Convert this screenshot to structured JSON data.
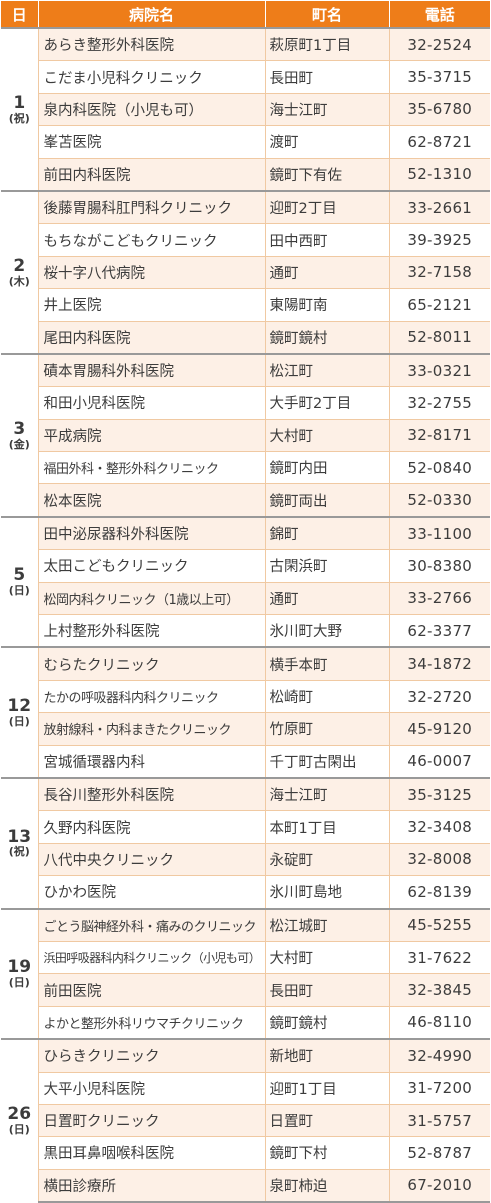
{
  "header": {
    "day": "日",
    "name": "病院名",
    "town": "町名",
    "tel": "電話"
  },
  "groups": [
    {
      "day": "1",
      "dow": "(祝)",
      "rows": [
        {
          "name": "あらき整形外科医院",
          "town": "萩原町1丁目",
          "tel": "32-2524"
        },
        {
          "name": "こだま小児科クリニック",
          "town": "長田町",
          "tel": "35-3715"
        },
        {
          "name": "泉内科医院（小児も可）",
          "town": "海士江町",
          "tel": "35-6780"
        },
        {
          "name": "峯苫医院",
          "town": "渡町",
          "tel": "62-8721"
        },
        {
          "name": "前田内科医院",
          "town": "鏡町下有佐",
          "tel": "52-1310"
        }
      ]
    },
    {
      "day": "2",
      "dow": "(木)",
      "rows": [
        {
          "name": "後藤胃腸科肛門科クリニック",
          "town": "迎町2丁目",
          "tel": "33-2661"
        },
        {
          "name": "もちながこどもクリニック",
          "town": "田中西町",
          "tel": "39-3925"
        },
        {
          "name": "桜十字八代病院",
          "town": "通町",
          "tel": "32-7158"
        },
        {
          "name": "井上医院",
          "town": "東陽町南",
          "tel": "65-2121"
        },
        {
          "name": "尾田内科医院",
          "town": "鏡町鏡村",
          "tel": "52-8011"
        }
      ]
    },
    {
      "day": "3",
      "dow": "(金)",
      "rows": [
        {
          "name": "磧本胃腸科外科医院",
          "town": "松江町",
          "tel": "33-0321"
        },
        {
          "name": "和田小児科医院",
          "town": "大手町2丁目",
          "tel": "32-2755"
        },
        {
          "name": "平成病院",
          "town": "大村町",
          "tel": "32-8171"
        },
        {
          "name": "福田外科・整形外科クリニック",
          "town": "鏡町内田",
          "tel": "52-0840"
        },
        {
          "name": "松本医院",
          "town": "鏡町両出",
          "tel": "52-0330"
        }
      ]
    },
    {
      "day": "5",
      "dow": "(日)",
      "rows": [
        {
          "name": "田中泌尿器科外科医院",
          "town": "錦町",
          "tel": "33-1100"
        },
        {
          "name": "太田こどもクリニック",
          "town": "古閑浜町",
          "tel": "30-8380"
        },
        {
          "name": "松岡内科クリニック（1歳以上可）",
          "town": "通町",
          "tel": "33-2766"
        },
        {
          "name": "上村整形外科医院",
          "town": "氷川町大野",
          "tel": "62-3377"
        }
      ]
    },
    {
      "day": "12",
      "dow": "(日)",
      "rows": [
        {
          "name": "むらたクリニック",
          "town": "横手本町",
          "tel": "34-1872"
        },
        {
          "name": "たかの呼吸器科内科クリニック",
          "town": "松崎町",
          "tel": "32-2720"
        },
        {
          "name": "放射線科・内科まきたクリニック",
          "town": "竹原町",
          "tel": "45-9120"
        },
        {
          "name": "宮城循環器内科",
          "town": "千丁町古閑出",
          "tel": "46-0007"
        }
      ]
    },
    {
      "day": "13",
      "dow": "(祝)",
      "rows": [
        {
          "name": "長谷川整形外科医院",
          "town": "海士江町",
          "tel": "35-3125"
        },
        {
          "name": "久野内科医院",
          "town": "本町1丁目",
          "tel": "32-3408"
        },
        {
          "name": "八代中央クリニック",
          "town": "永碇町",
          "tel": "32-8008"
        },
        {
          "name": "ひかわ医院",
          "town": "氷川町島地",
          "tel": "62-8139"
        }
      ]
    },
    {
      "day": "19",
      "dow": "(日)",
      "rows": [
        {
          "name": "ごとう脳神経外科・痛みのクリニック",
          "town": "松江城町",
          "tel": "45-5255"
        },
        {
          "name": "浜田呼吸器科内科クリニック（小児も可）",
          "town": "大村町",
          "tel": "31-7622"
        },
        {
          "name": "前田医院",
          "town": "長田町",
          "tel": "32-3845"
        },
        {
          "name": "よかと整形外科リウマチクリニック",
          "town": "鏡町鏡村",
          "tel": "46-8110"
        }
      ]
    },
    {
      "day": "26",
      "dow": "(日)",
      "rows": [
        {
          "name": "ひらきクリニック",
          "town": "新地町",
          "tel": "32-4990"
        },
        {
          "name": "大平小児科医院",
          "town": "迎町1丁目",
          "tel": "31-7200"
        },
        {
          "name": "日置町クリニック",
          "town": "日置町",
          "tel": "31-5757"
        },
        {
          "name": "黒田耳鼻咽喉科医院",
          "town": "鏡町下村",
          "tel": "52-8787"
        },
        {
          "name": "横田診療所",
          "town": "泉町柿迫",
          "tel": "67-2010"
        }
      ]
    }
  ]
}
